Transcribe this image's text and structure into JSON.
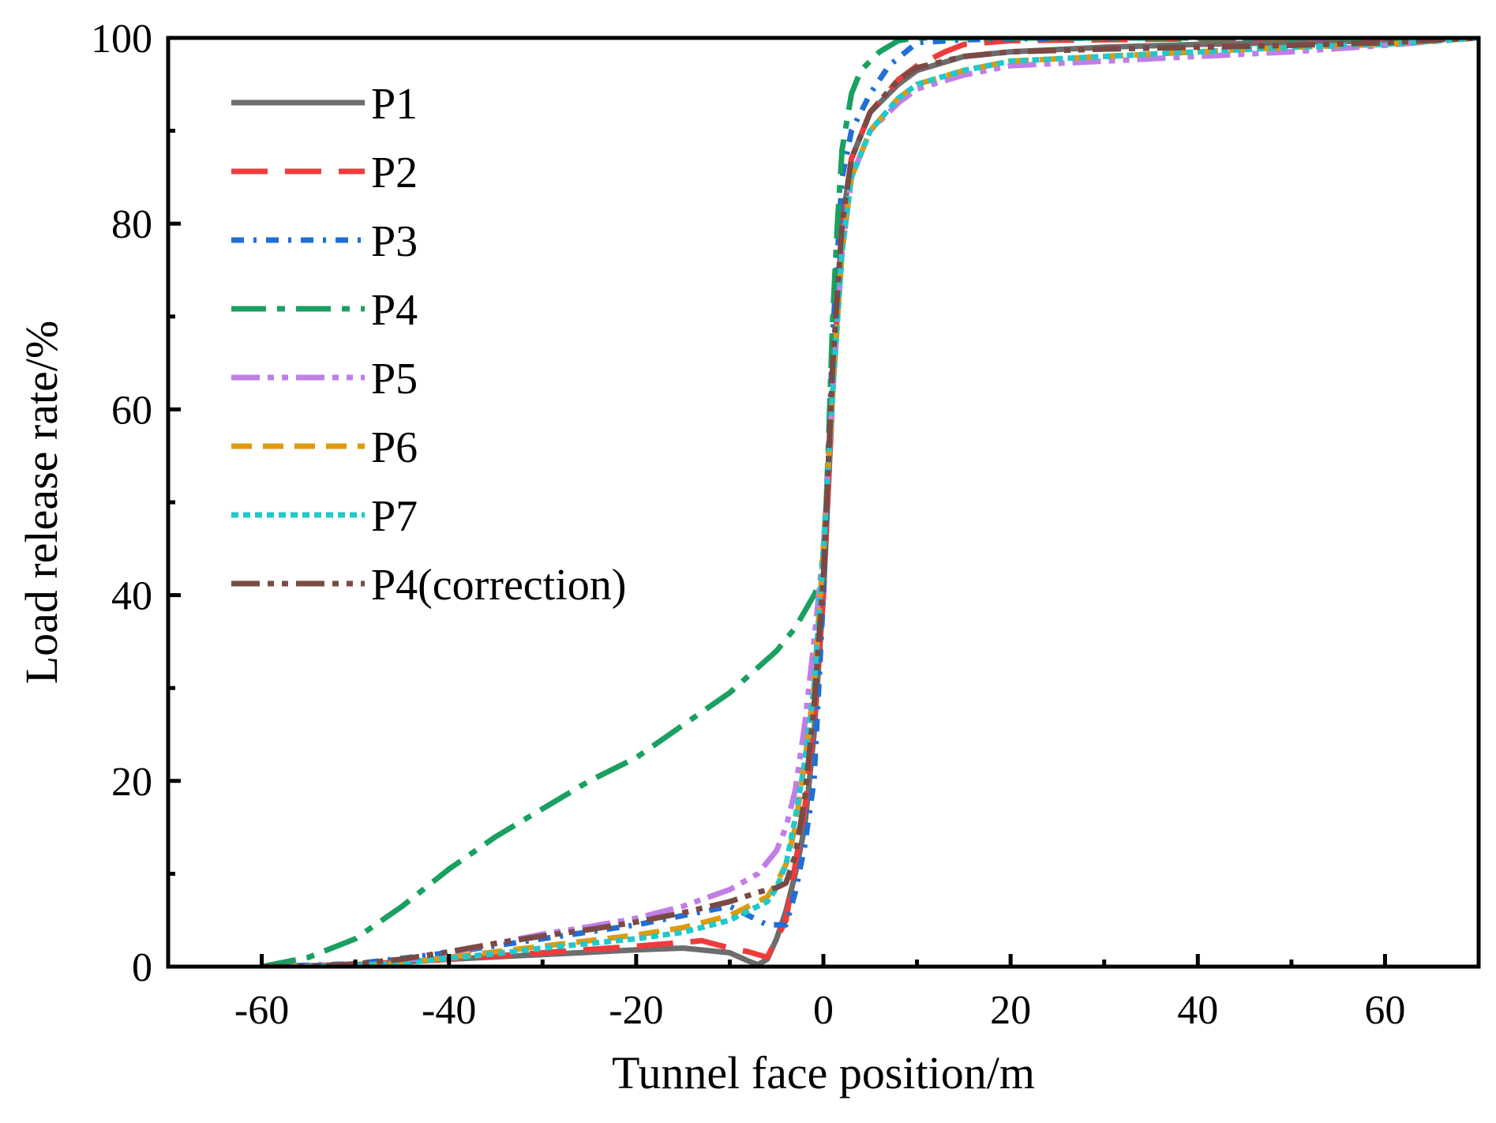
{
  "chart_data": {
    "type": "line",
    "xlabel": "Tunnel face position/m",
    "ylabel": "Load release rate/%",
    "xlim": [
      -70,
      70
    ],
    "ylim": [
      0,
      100
    ],
    "xticks": [
      -60,
      -40,
      -20,
      0,
      20,
      40,
      60
    ],
    "xtick_labels": [
      "-60",
      "-40",
      "-20",
      "0",
      "20",
      "40",
      "60"
    ],
    "yticks": [
      0,
      20,
      40,
      60,
      80,
      100
    ],
    "ytick_labels": [
      "0",
      "20",
      "40",
      "60",
      "80",
      "100"
    ],
    "legend_position": "upper-left",
    "grid": false,
    "series": [
      {
        "name": "P1",
        "color": "#6d6d6d",
        "dash": "solid",
        "x": [
          -60,
          -50,
          -40,
          -30,
          -20,
          -15,
          -10,
          -8,
          -7,
          -6,
          -5,
          -4,
          -3,
          -2,
          -1,
          0,
          1,
          2,
          3,
          5,
          8,
          10,
          15,
          20,
          30,
          40,
          50,
          60,
          70
        ],
        "y": [
          0,
          0.2,
          0.8,
          1.3,
          1.8,
          2.0,
          1.5,
          0.6,
          0.2,
          0.8,
          3,
          6,
          10,
          15,
          25,
          40,
          62,
          80,
          87,
          92,
          95,
          96.5,
          98,
          98.5,
          99,
          99.3,
          99.5,
          99.7,
          100
        ]
      },
      {
        "name": "P2",
        "color": "#ee3b3b",
        "dash": "long-dash",
        "x": [
          -60,
          -50,
          -40,
          -30,
          -20,
          -15,
          -13,
          -10,
          -8,
          -6,
          -4,
          -3,
          -2,
          -1,
          0,
          1,
          2,
          3,
          5,
          8,
          10,
          13,
          15,
          20,
          30,
          40,
          50,
          60,
          70
        ],
        "y": [
          0,
          0.2,
          0.8,
          1.5,
          2.2,
          2.6,
          2.8,
          2.0,
          1.6,
          1.0,
          5,
          11,
          17,
          26,
          40,
          62,
          80,
          87,
          92,
          95.5,
          97,
          98.5,
          99.3,
          99.7,
          99.8,
          99.9,
          99.9,
          100,
          100
        ]
      },
      {
        "name": "P3",
        "color": "#1f6fd6",
        "dash": "dot-dash",
        "x": [
          -60,
          -50,
          -40,
          -30,
          -20,
          -15,
          -10,
          -8,
          -6,
          -4,
          -3,
          -2,
          -1,
          0,
          1,
          2,
          3,
          5,
          7,
          10,
          15,
          20,
          30,
          40,
          50,
          60,
          70
        ],
        "y": [
          0,
          0.3,
          1.5,
          3.0,
          4.5,
          5.5,
          6.5,
          5.5,
          4.5,
          4.5,
          8,
          13,
          20,
          40,
          68,
          85,
          90,
          94,
          97,
          99.5,
          99.8,
          99.9,
          100,
          100,
          100,
          100,
          100
        ]
      },
      {
        "name": "P4",
        "color": "#1aa061",
        "dash": "dash-dot",
        "x": [
          -60,
          -55,
          -50,
          -45,
          -40,
          -35,
          -30,
          -25,
          -20,
          -15,
          -10,
          -5,
          -3,
          -1,
          0,
          0.5,
          1,
          1.5,
          2,
          3,
          4,
          6,
          8,
          10,
          20,
          40,
          60,
          70
        ],
        "y": [
          0,
          1,
          3,
          6.5,
          10.5,
          14,
          17,
          20,
          22.5,
          26,
          29.5,
          34,
          36.5,
          40,
          42,
          55,
          70,
          80,
          88,
          94,
          96.5,
          98.5,
          99.7,
          100,
          100,
          100,
          100,
          100
        ]
      },
      {
        "name": "P5",
        "color": "#c07ee6",
        "dash": "dash-dot-dot",
        "x": [
          -60,
          -55,
          -50,
          -45,
          -40,
          -35,
          -30,
          -25,
          -20,
          -15,
          -10,
          -7,
          -5,
          -4,
          -3,
          -2,
          -1,
          0,
          1,
          2,
          3,
          5,
          8,
          10,
          15,
          20,
          30,
          40,
          50,
          60,
          70
        ],
        "y": [
          0,
          0,
          0.2,
          0.6,
          1.5,
          2.5,
          3.5,
          4.3,
          5.2,
          6.5,
          8.3,
          10,
          12.5,
          15,
          19,
          26,
          35,
          45,
          62,
          77,
          85,
          90,
          93,
          94.5,
          96,
          97,
          97.5,
          98,
          98.5,
          99.2,
          100
        ]
      },
      {
        "name": "P6",
        "color": "#e09a0c",
        "dash": "dash",
        "x": [
          -60,
          -55,
          -50,
          -45,
          -40,
          -35,
          -30,
          -25,
          -20,
          -15,
          -10,
          -8,
          -6,
          -5,
          -4,
          -3,
          -2,
          -1,
          0,
          1,
          2,
          3,
          5,
          8,
          10,
          15,
          20,
          30,
          40,
          50,
          60,
          70
        ],
        "y": [
          0,
          0,
          0.1,
          0.4,
          1.0,
          1.6,
          2.2,
          2.8,
          3.4,
          4.2,
          5.5,
          6.5,
          7.5,
          9,
          11,
          15,
          22,
          30,
          45,
          62,
          77,
          85,
          90,
          93.5,
          95,
          96.5,
          97.5,
          98,
          98.5,
          99,
          99.3,
          100
        ]
      },
      {
        "name": "P7",
        "color": "#21c8cc",
        "dash": "dot",
        "x": [
          -60,
          -55,
          -50,
          -45,
          -40,
          -35,
          -30,
          -25,
          -20,
          -15,
          -10,
          -8,
          -6,
          -5,
          -4,
          -3,
          -2,
          -1,
          0,
          1,
          2,
          3,
          5,
          8,
          10,
          15,
          20,
          30,
          40,
          50,
          60,
          70
        ],
        "y": [
          0,
          0,
          0.1,
          0.4,
          0.9,
          1.4,
          2.0,
          2.5,
          3.0,
          3.7,
          5.0,
          6.0,
          7.0,
          8.5,
          11,
          16,
          22,
          30,
          45,
          62,
          77,
          85,
          90,
          93.5,
          95,
          96.5,
          97.5,
          98,
          98.5,
          99,
          99.3,
          100
        ]
      },
      {
        "name": "P4(correction)",
        "color": "#7a4a44",
        "dash": "dash-dot-dot",
        "x": [
          -60,
          -55,
          -50,
          -45,
          -40,
          -35,
          -30,
          -25,
          -20,
          -15,
          -10,
          -7,
          -5,
          -4,
          -3,
          -2,
          -1,
          0,
          1,
          2,
          3,
          5,
          8,
          10,
          15,
          20,
          30,
          40,
          50,
          60,
          70
        ],
        "y": [
          0,
          0,
          0.3,
          0.8,
          1.6,
          2.5,
          3.3,
          4.0,
          4.8,
          5.8,
          7.0,
          8.0,
          8.5,
          9,
          12,
          18,
          28,
          42,
          65,
          80,
          87,
          92,
          95.5,
          96.8,
          98,
          98.5,
          98.8,
          99,
          99.2,
          99.5,
          100
        ]
      }
    ]
  }
}
